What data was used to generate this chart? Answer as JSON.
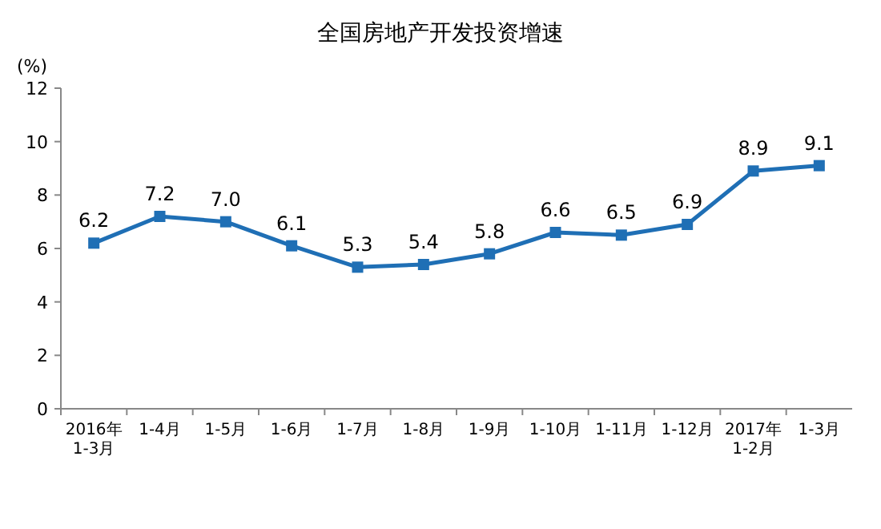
{
  "chart_data": {
    "type": "line",
    "title": "全国房地产开发投资增速",
    "ylabel": "(%)",
    "categories": [
      "2016年\n1-3月",
      "1-4月",
      "1-5月",
      "1-6月",
      "1-7月",
      "1-8月",
      "1-9月",
      "1-10月",
      "1-11月",
      "1-12月",
      "2017年\n1-2月",
      "1-3月"
    ],
    "series": [
      {
        "color": "#1f6fb5",
        "values": [
          6.2,
          7.2,
          7.0,
          6.1,
          5.3,
          5.4,
          5.8,
          6.6,
          6.5,
          6.9,
          8.9,
          9.1
        ],
        "value_labels": [
          "6.2",
          "7.2",
          "7.0",
          "6.1",
          "5.3",
          "5.4",
          "5.8",
          "6.6",
          "6.5",
          "6.9",
          "8.9",
          "9.1"
        ]
      }
    ],
    "ylim": [
      0,
      12
    ],
    "yticks": [
      0,
      2,
      4,
      6,
      8,
      10,
      12
    ],
    "marker": "square",
    "line_style": "solid",
    "grid": false
  }
}
